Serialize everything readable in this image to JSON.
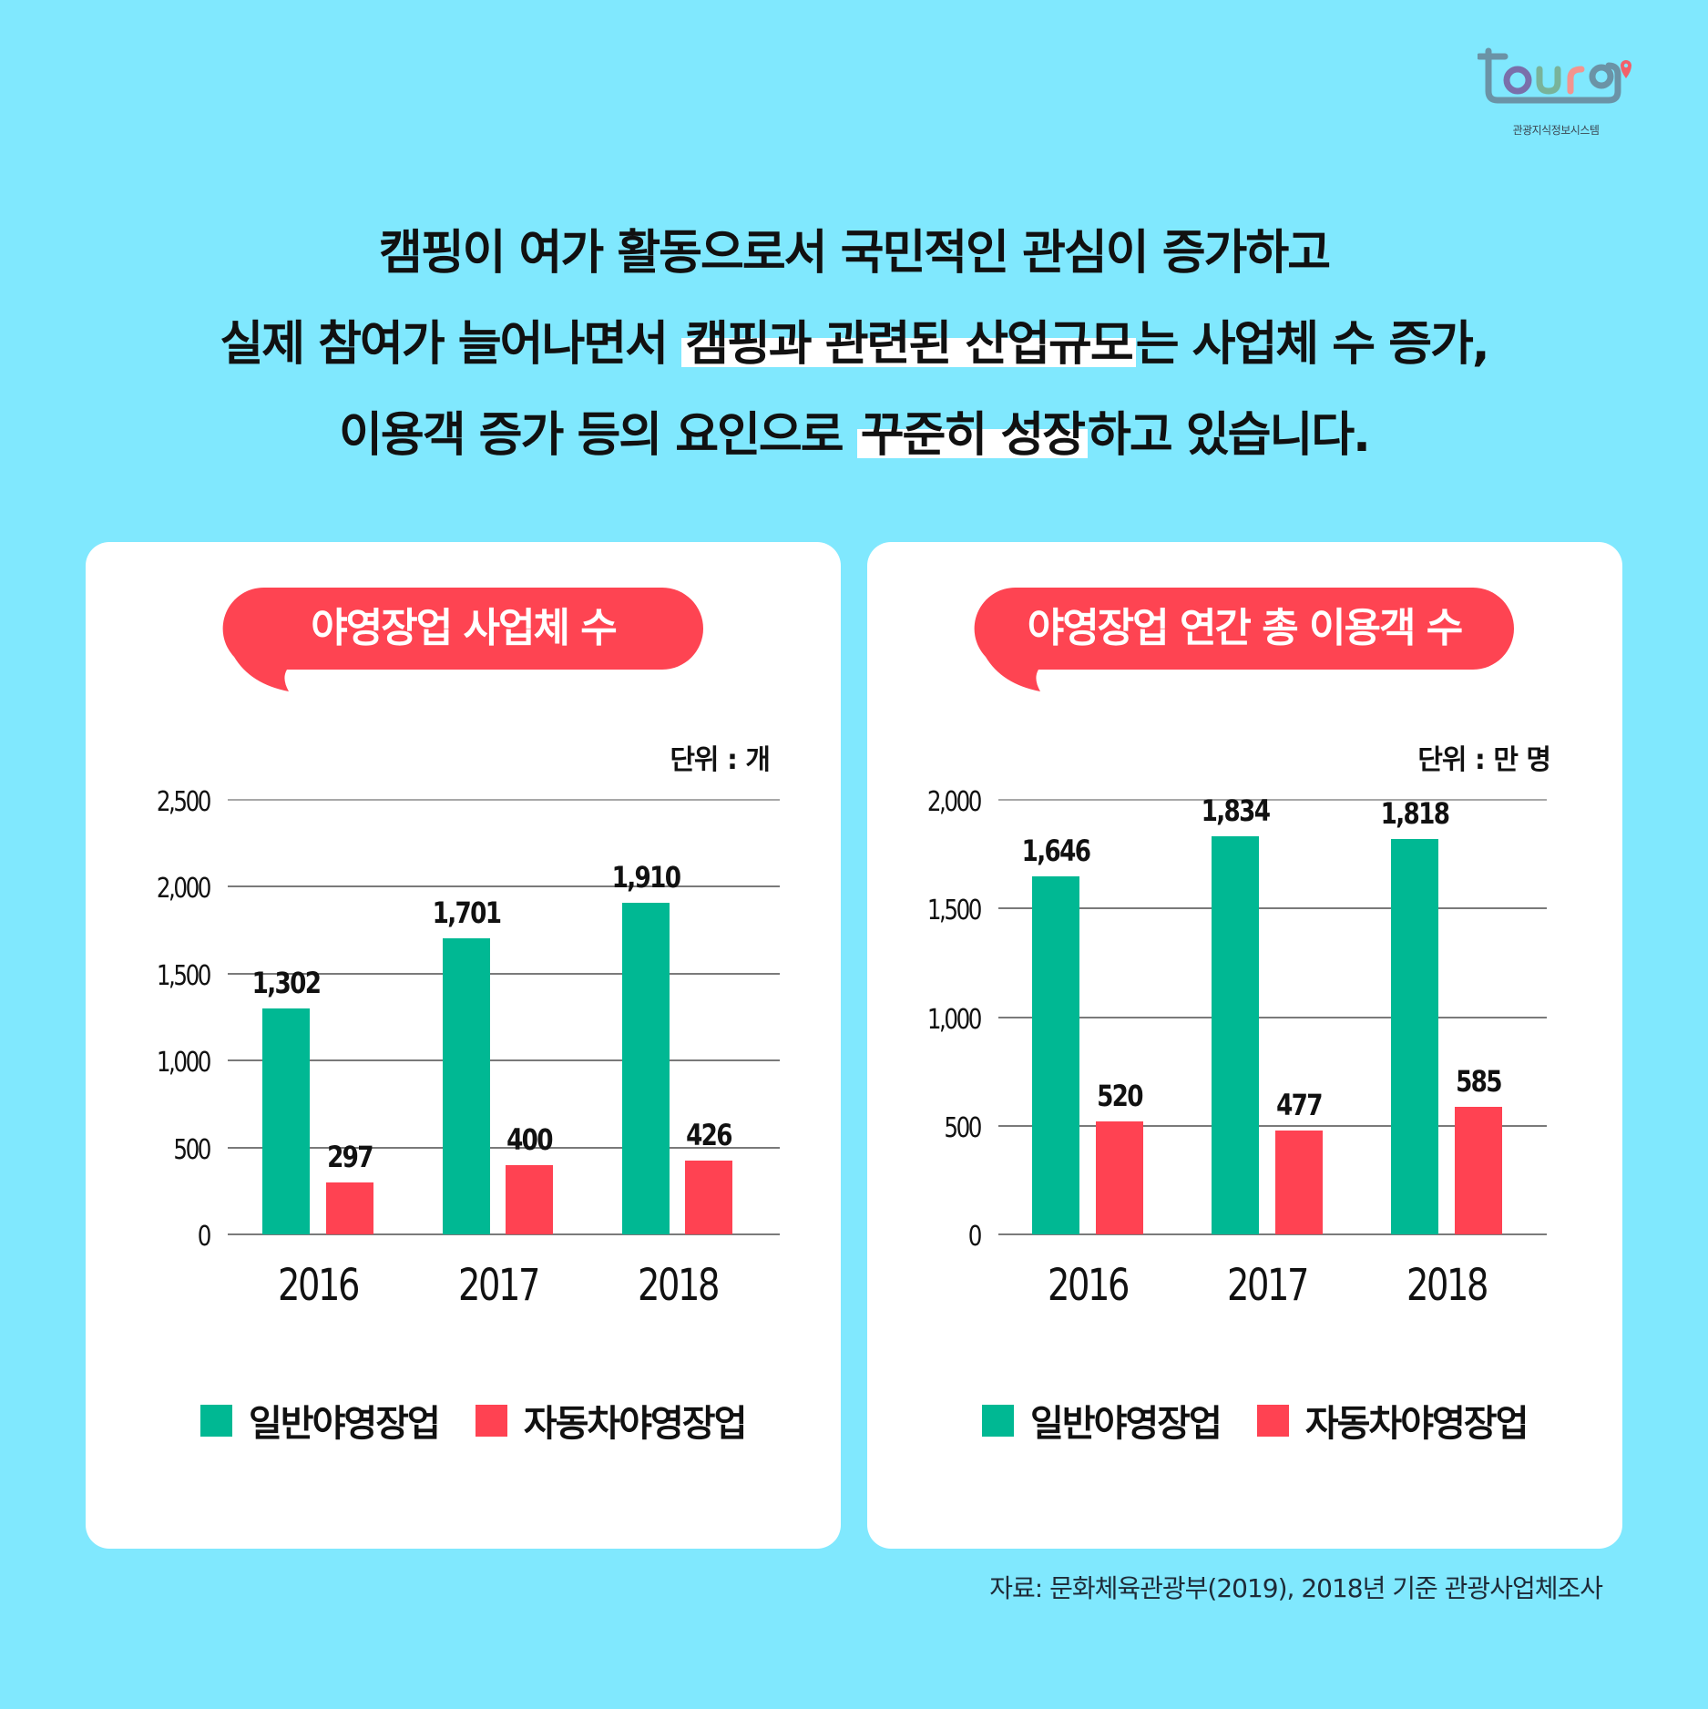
{
  "logo": {
    "wordmark": "tourg",
    "subtitle": "관광지식정보시스템",
    "colors": {
      "frame": "#6b93a6",
      "t": "#6b93a6",
      "o": "#7a6faa",
      "u": "#79b39a",
      "r": "#f3948f",
      "g": "#6b93a6",
      "pin": "#f2606a"
    }
  },
  "headline": {
    "line1": "캠핑이 여가 활동으로서 국민적인 관심이 증가하고",
    "line2_pre": "실제 참여가 늘어나면서 ",
    "line2_highlight": "캠핑과 관련된 산업규모",
    "line2_post": "는 사업체 수 증가,",
    "line3_pre": "이용객 증가 등의 요인으로 ",
    "line3_highlight": "꾸준히 성장",
    "line3_post": "하고 있습니다."
  },
  "colors": {
    "background": "#80e8fe",
    "card": "#ffffff",
    "bubble": "#fe4452",
    "general": "#00b893",
    "auto": "#ff4252"
  },
  "chart_data": [
    {
      "type": "bar",
      "title": "야영장업 사업체 수",
      "unit_label": "단위 : 개",
      "categories": [
        "2016",
        "2017",
        "2018"
      ],
      "series": [
        {
          "name": "일반야영장업",
          "color": "#00b893",
          "values": [
            1302,
            1701,
            1910
          ],
          "labels": [
            "1,302",
            "1,701",
            "1,910"
          ]
        },
        {
          "name": "자동차야영장업",
          "color": "#ff4252",
          "values": [
            297,
            400,
            426
          ],
          "labels": [
            "297",
            "400",
            "426"
          ]
        }
      ],
      "yticks": [
        0,
        500,
        1000,
        1500,
        2000,
        2500
      ],
      "ytick_labels": [
        "0",
        "500",
        "1,000",
        "1,500",
        "2,000",
        "2,500"
      ],
      "ylim": [
        0,
        2500
      ],
      "xlabel": "",
      "ylabel": "",
      "grid": true,
      "legend_position": "bottom"
    },
    {
      "type": "bar",
      "title": "야영장업 연간 총 이용객 수",
      "unit_label": "단위 : 만 명",
      "categories": [
        "2016",
        "2017",
        "2018"
      ],
      "series": [
        {
          "name": "일반야영장업",
          "color": "#00b893",
          "values": [
            1646,
            1834,
            1818
          ],
          "labels": [
            "1,646",
            "1,834",
            "1,818"
          ]
        },
        {
          "name": "자동차야영장업",
          "color": "#ff4252",
          "values": [
            520,
            477,
            585
          ],
          "labels": [
            "520",
            "477",
            "585"
          ]
        }
      ],
      "yticks": [
        0,
        500,
        1000,
        1500,
        2000
      ],
      "ytick_labels": [
        "0",
        "500",
        "1,000",
        "1,500",
        "2,000"
      ],
      "ylim": [
        0,
        2000
      ],
      "xlabel": "",
      "ylabel": "",
      "grid": true,
      "legend_position": "bottom"
    }
  ],
  "source": "자료: 문화체육관광부(2019), 2018년 기준 관광사업체조사"
}
